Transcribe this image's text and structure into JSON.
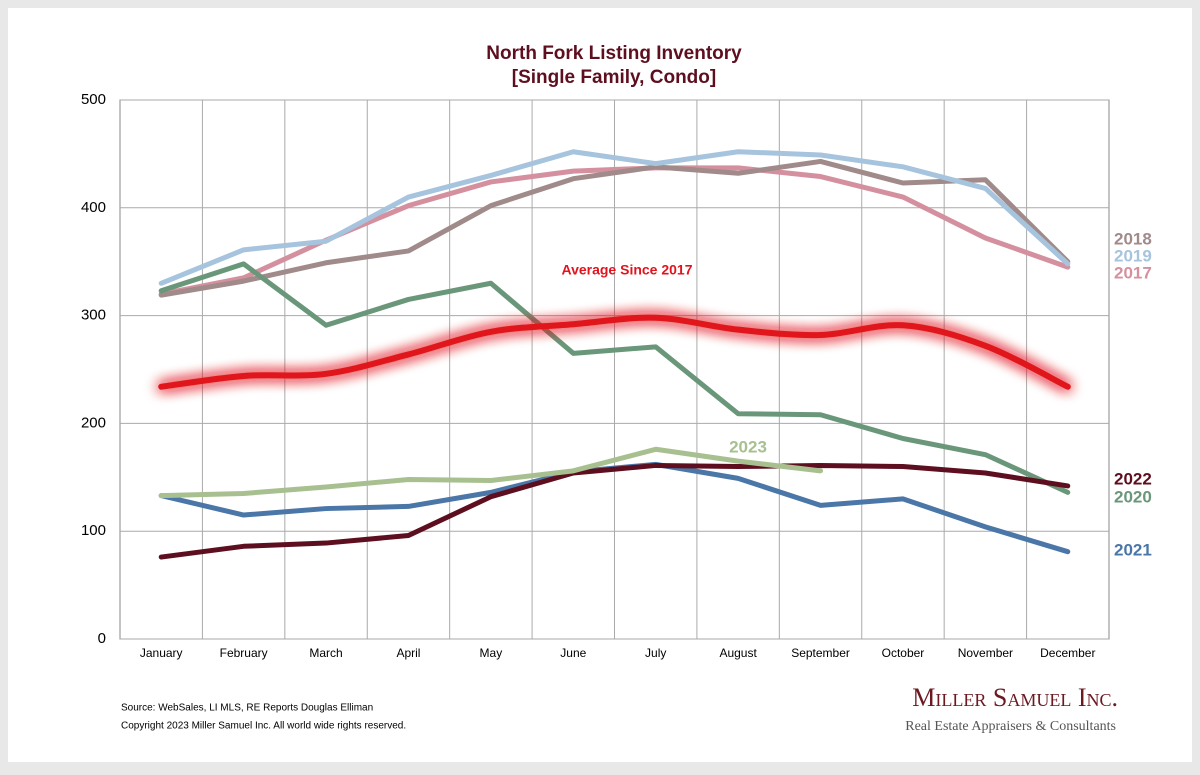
{
  "chart_data": {
    "type": "line",
    "title": "North Fork Listing Inventory",
    "subtitle": "[Single Family, Condo]",
    "categories": [
      "January",
      "February",
      "March",
      "April",
      "May",
      "June",
      "July",
      "August",
      "September",
      "October",
      "November",
      "December"
    ],
    "ylim": [
      0,
      500
    ],
    "yticks": [
      0,
      100,
      200,
      300,
      400,
      500
    ],
    "grid": true,
    "series": [
      {
        "name": "2017",
        "color": "#d4909f",
        "values": [
          320,
          335,
          370,
          402,
          424,
          434,
          437,
          437,
          429,
          410,
          372,
          345
        ]
      },
      {
        "name": "2018",
        "color": "#a08a8a",
        "values": [
          319,
          332,
          349,
          360,
          402,
          427,
          438,
          432,
          443,
          423,
          426,
          350
        ]
      },
      {
        "name": "2019",
        "color": "#a6c4dd",
        "values": [
          330,
          361,
          369,
          410,
          430,
          452,
          441,
          452,
          449,
          438,
          418,
          348
        ]
      },
      {
        "name": "2020",
        "color": "#6a977a",
        "values": [
          323,
          348,
          291,
          315,
          330,
          265,
          271,
          209,
          208,
          186,
          171,
          136
        ]
      },
      {
        "name": "2021",
        "color": "#4a76a8",
        "values": [
          133,
          115,
          121,
          123,
          136,
          155,
          162,
          149,
          124,
          130,
          104,
          81
        ]
      },
      {
        "name": "2022",
        "color": "#5e0f1f",
        "values": [
          76,
          86,
          89,
          96,
          132,
          154,
          161,
          160,
          161,
          160,
          154,
          142
        ]
      },
      {
        "name": "2023",
        "color": "#a8c090",
        "values": [
          133,
          135,
          141,
          148,
          147,
          156,
          176,
          165,
          156,
          null,
          null,
          null
        ]
      },
      {
        "name": "Average  Since 2017",
        "color": "#e0141e",
        "glow": true,
        "values": [
          234,
          244,
          246,
          264,
          285,
          292,
          298,
          287,
          282,
          291,
          272,
          234
        ]
      }
    ],
    "source": "Source: WebSales, LI MLS, RE Reports Douglas Elliman",
    "copyright": "Copyright 2023 Miller Samuel Inc.  All world wide rights reserved.",
    "brand": "Miller Samuel Inc.",
    "tagline": "Real Estate Appraisers & Consultants"
  }
}
